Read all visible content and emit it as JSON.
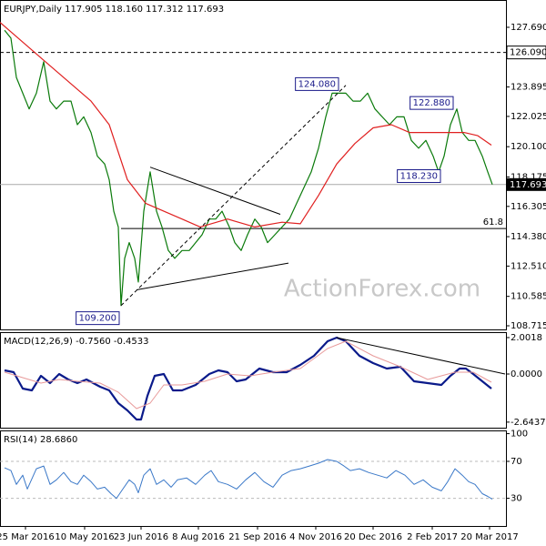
{
  "chart_data": [
    {
      "type": "line",
      "title": "EURJPY,Daily 117.905 118.160 117.312 117.693",
      "watermark": "ActionForex.com",
      "xlim": [
        0,
        278
      ],
      "ylim": [
        108.484,
        129.425
      ],
      "yticks": [
        {
          "value": 127.69,
          "label": "127.690"
        },
        {
          "value": 123.895,
          "label": "123.895"
        },
        {
          "value": 122.025,
          "label": "122.025"
        },
        {
          "value": 120.1,
          "label": "120.100"
        },
        {
          "value": 118.175,
          "label": "118.175"
        },
        {
          "value": 116.305,
          "label": "116.305"
        },
        {
          "value": 114.38,
          "label": "114.380"
        },
        {
          "value": 112.51,
          "label": "112.510"
        },
        {
          "value": 110.585,
          "label": "110.585"
        },
        {
          "value": 108.715,
          "label": "108.715"
        }
      ],
      "series": [
        {
          "name": "EURJPY",
          "color": "#0a7a0a",
          "width": 1.2,
          "x": [
            2.5,
            6,
            9,
            12.5,
            16,
            20,
            24,
            27.5,
            31,
            35,
            39,
            42.5,
            46,
            50,
            53.5,
            57.5,
            60,
            62.5,
            65,
            66.5,
            68.5,
            71,
            74,
            76,
            79,
            82.5,
            86,
            89,
            92.5,
            96,
            100,
            104,
            107.5,
            111,
            115,
            118.5,
            122,
            126,
            129,
            132.5,
            136,
            140,
            143.5,
            147,
            151,
            155,
            159,
            163,
            167,
            171,
            175,
            179,
            182.5,
            186,
            190,
            194,
            198,
            202,
            206,
            210,
            214,
            218,
            222,
            226,
            230,
            234,
            238,
            241,
            244,
            247.5,
            251,
            254,
            257.5,
            261,
            265,
            268,
            270.5
          ],
          "values": [
            127.5,
            127.0,
            124.5,
            123.5,
            122.5,
            123.5,
            125.5,
            123.0,
            122.5,
            123.0,
            123.0,
            121.5,
            122.0,
            121.0,
            119.5,
            119.0,
            118.0,
            116.0,
            115.0,
            110.0,
            113.0,
            114.0,
            113.0,
            111.5,
            116.0,
            118.5,
            116.0,
            115.0,
            113.5,
            113.0,
            113.5,
            113.5,
            114.0,
            114.5,
            115.5,
            115.5,
            116.0,
            115.0,
            114.0,
            113.5,
            114.5,
            115.5,
            115.0,
            114.0,
            114.5,
            115.0,
            115.5,
            116.5,
            117.5,
            118.5,
            120.0,
            122.0,
            123.5,
            123.5,
            123.5,
            123.0,
            123.0,
            123.5,
            122.5,
            122.0,
            121.5,
            122.0,
            122.0,
            120.5,
            120.0,
            120.5,
            119.5,
            118.5,
            119.5,
            121.5,
            122.5,
            121.0,
            120.5,
            120.5,
            119.5,
            118.5,
            117.7
          ]
        },
        {
          "name": "MA",
          "color": "#e02020",
          "width": 1.2,
          "x": [
            0,
            10,
            25,
            40,
            50,
            60,
            70,
            80,
            90,
            100,
            110,
            125,
            140,
            155,
            165,
            175,
            185,
            195,
            205,
            215,
            225,
            235,
            245,
            255,
            262.5,
            270
          ],
          "values": [
            128.0,
            127.0,
            125.5,
            124.0,
            123.0,
            121.5,
            118.0,
            116.5,
            116.0,
            115.5,
            115.0,
            115.5,
            115.0,
            115.3,
            115.2,
            117.0,
            119.0,
            120.3,
            121.3,
            121.5,
            121.0,
            121.0,
            121.0,
            121.0,
            120.8,
            120.2
          ]
        }
      ],
      "trendlines": [
        {
          "x": [
            82.5,
            154
          ],
          "values": [
            118.8,
            115.8
          ]
        },
        {
          "x": [
            75,
            158.5
          ],
          "values": [
            111.0,
            112.7
          ]
        },
        {
          "x": [
            66.5,
            190
          ],
          "values": [
            110.0,
            124.0
          ],
          "dashed": true
        }
      ],
      "levels": [
        {
          "value": 126.09,
          "label": "126.090",
          "style": "dashed"
        },
        {
          "value": 117.693,
          "label": "117.693",
          "style": "current"
        },
        {
          "value": 114.9,
          "label": "61.8",
          "style": "fib",
          "from": 66.5
        }
      ],
      "annotations": [
        {
          "label": "124.080",
          "value": 124.08,
          "x": 186
        },
        {
          "label": "122.880",
          "value": 122.88,
          "x": 249
        },
        {
          "label": "118.230",
          "value": 118.23,
          "x": 242
        },
        {
          "label": "109.200",
          "value": 109.2,
          "x": 65.5
        }
      ]
    },
    {
      "type": "line",
      "title": "MACD(12,26,9) -0.7560 -0.4533",
      "xlim": [
        0,
        278
      ],
      "ylim": [
        -2.95,
        2.3
      ],
      "yticks": [
        {
          "value": 2.0018,
          "label": "2.0018"
        },
        {
          "value": 0,
          "label": "0.0000"
        },
        {
          "value": -2.6437,
          "label": "-2.6437"
        }
      ],
      "series": [
        {
          "name": "MACD",
          "color": "#0a1a8a",
          "width": 2.2,
          "x": [
            2.5,
            7.5,
            12.5,
            17.5,
            22.5,
            27.5,
            32.5,
            37.5,
            42.5,
            47.5,
            55,
            60,
            65,
            70,
            75,
            77.5,
            81,
            85,
            90,
            95,
            100,
            107.5,
            115,
            120,
            125,
            130,
            135,
            142.5,
            150,
            157.5,
            165,
            172.5,
            180,
            185,
            190,
            197.5,
            205,
            212.5,
            220,
            227.5,
            235,
            242.5,
            247.5,
            252.5,
            256,
            260,
            265,
            270
          ],
          "values": [
            0.2,
            0.1,
            -0.8,
            -0.9,
            -0.1,
            -0.5,
            0,
            -0.3,
            -0.5,
            -0.3,
            -0.7,
            -0.9,
            -1.6,
            -2.0,
            -2.5,
            -2.5,
            -1.2,
            -0.1,
            0,
            -0.9,
            -0.9,
            -0.6,
            0,
            0.2,
            0.1,
            -0.4,
            -0.3,
            0.3,
            0.1,
            0.1,
            0.5,
            1.0,
            1.8,
            2.0,
            1.8,
            1.0,
            0.6,
            0.3,
            0.4,
            -0.4,
            -0.5,
            -0.6,
            -0.1,
            0.3,
            0.3,
            0,
            -0.4,
            -0.8
          ]
        },
        {
          "name": "Signal",
          "color": "#e89a9a",
          "width": 1,
          "x": [
            2.5,
            12.5,
            22.5,
            32.5,
            42.5,
            55,
            65,
            75,
            82.5,
            90,
            100,
            112.5,
            125,
            137.5,
            150,
            165,
            180,
            190,
            205,
            220,
            235,
            250,
            260,
            270
          ],
          "values": [
            0.1,
            -0.2,
            -0.5,
            -0.3,
            -0.4,
            -0.5,
            -1.0,
            -1.9,
            -1.6,
            -0.6,
            -0.6,
            -0.4,
            0,
            -0.1,
            0.1,
            0.3,
            1.4,
            1.8,
            1.0,
            0.4,
            -0.3,
            0.1,
            0.1,
            -0.45
          ]
        }
      ],
      "trendlines": [
        {
          "x": [
            185,
            277.5
          ],
          "values": [
            2.0,
            0
          ]
        }
      ]
    },
    {
      "type": "line",
      "title": "RSI(14) 28.6860",
      "xlim": [
        0,
        278
      ],
      "ylim": [
        0,
        103.5
      ],
      "yticks": [
        100,
        70,
        30
      ],
      "xticks": [
        {
          "value": 14,
          "label": "25 Mar 2016"
        },
        {
          "value": 46.5,
          "label": "10 May 2016"
        },
        {
          "value": 77.5,
          "label": "23 Jun 2016"
        },
        {
          "value": 109,
          "label": "8 Aug 2016"
        },
        {
          "value": 141.5,
          "label": "21 Sep 2016"
        },
        {
          "value": 173.5,
          "label": "4 Nov 2016"
        },
        {
          "value": 205,
          "label": "20 Dec 2016"
        },
        {
          "value": 237.5,
          "label": "2 Feb 2017"
        },
        {
          "value": 269,
          "label": "20 Mar 2017"
        }
      ],
      "series": [
        {
          "name": "RSI",
          "color": "#3a78c8",
          "width": 1,
          "x": [
            2.5,
            6,
            9,
            12.5,
            15,
            20,
            24,
            27.5,
            31,
            35,
            39,
            42.5,
            46,
            50,
            53.5,
            57.5,
            61,
            64,
            67.5,
            71,
            74,
            76,
            79,
            82.5,
            86,
            90,
            94,
            97.5,
            102.5,
            107.5,
            112.5,
            116,
            120,
            125,
            130,
            135,
            140,
            145,
            150,
            155,
            160,
            165,
            170,
            175,
            180,
            185,
            189,
            192.5,
            197.5,
            202.5,
            207.5,
            212.5,
            217.5,
            222.5,
            227.5,
            232.5,
            237.5,
            242.5,
            246,
            250,
            254,
            257.5,
            261,
            265,
            268,
            270.5
          ],
          "values": [
            63,
            60,
            45,
            55,
            40,
            62,
            65,
            45,
            50,
            58,
            48,
            45,
            55,
            48,
            40,
            42,
            35,
            30,
            40,
            50,
            45,
            36,
            55,
            62,
            45,
            50,
            42,
            50,
            52,
            45,
            55,
            60,
            48,
            45,
            40,
            50,
            58,
            48,
            42,
            55,
            60,
            62,
            65,
            68,
            72,
            70,
            65,
            60,
            62,
            58,
            55,
            52,
            60,
            55,
            45,
            50,
            42,
            38,
            48,
            62,
            55,
            48,
            45,
            35,
            32,
            29
          ]
        }
      ],
      "levels": [
        {
          "value": 70
        },
        {
          "value": 30
        }
      ]
    }
  ]
}
